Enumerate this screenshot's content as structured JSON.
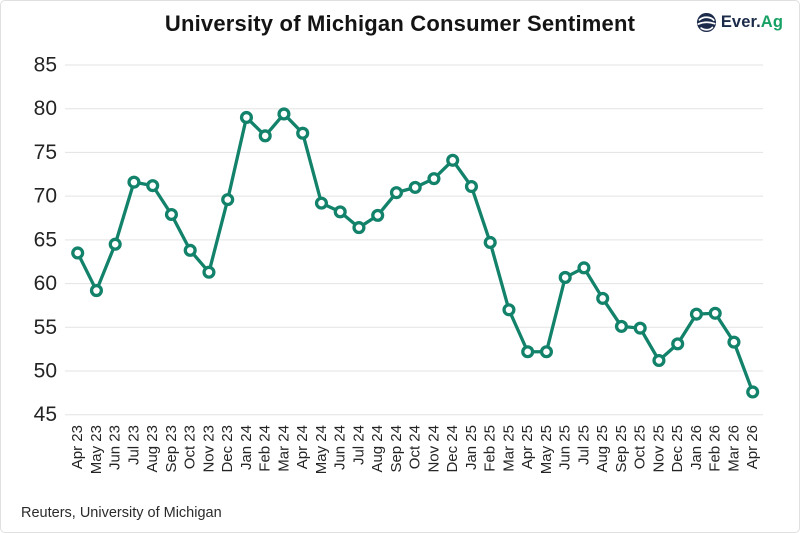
{
  "header": {
    "title": "University of Michigan Consumer Sentiment",
    "logo": {
      "text_primary": "Ever.",
      "text_accent": "Ag"
    }
  },
  "footer": {
    "source": "Reuters, University of Michigan"
  },
  "colors": {
    "line": "#12826A",
    "marker_fill": "#ffffff",
    "grid": "#e3e3e3",
    "axis_text": "#242424",
    "title_text": "#141414",
    "logo_navy": "#1c2b4a",
    "logo_green": "#17a164"
  },
  "chart_data": {
    "type": "line",
    "title": "University of Michigan Consumer Sentiment",
    "source": "Reuters, University of Michigan",
    "xlabel": "",
    "ylabel": "",
    "ylim": [
      45,
      85
    ],
    "yticks": [
      45,
      50,
      55,
      60,
      65,
      70,
      75,
      80,
      85
    ],
    "grid": true,
    "legend": false,
    "marker": "circle",
    "categories": [
      "Apr 23",
      "May 23",
      "Jun 23",
      "Jul 23",
      "Aug 23",
      "Sep 23",
      "Oct 23",
      "Nov 23",
      "Dec 23",
      "Jan 24",
      "Feb 24",
      "Mar 24",
      "Apr 24",
      "May 24",
      "Jun 24",
      "Jul 24",
      "Aug 24",
      "Sep 24",
      "Oct 24",
      "Nov 24",
      "Dec 24",
      "Jan 25",
      "Feb 25",
      "Mar 25",
      "Apr 25",
      "May 25",
      "Jun 25",
      "Jul 25",
      "Aug 25",
      "Sep 25",
      "Oct 25",
      "Nov 25",
      "Dec 25",
      "Jan 26",
      "Feb 26",
      "Mar 26",
      "Apr 26"
    ],
    "values": [
      63.5,
      59.2,
      64.5,
      71.6,
      71.2,
      67.9,
      63.8,
      61.3,
      69.6,
      79.0,
      76.9,
      79.4,
      77.2,
      69.2,
      68.2,
      66.4,
      67.8,
      70.4,
      71.0,
      72.0,
      74.1,
      71.1,
      64.7,
      57.0,
      52.2,
      52.2,
      60.7,
      61.8,
      58.3,
      55.1,
      54.9,
      51.2,
      53.1,
      56.5,
      56.6,
      53.3,
      47.6
    ]
  }
}
